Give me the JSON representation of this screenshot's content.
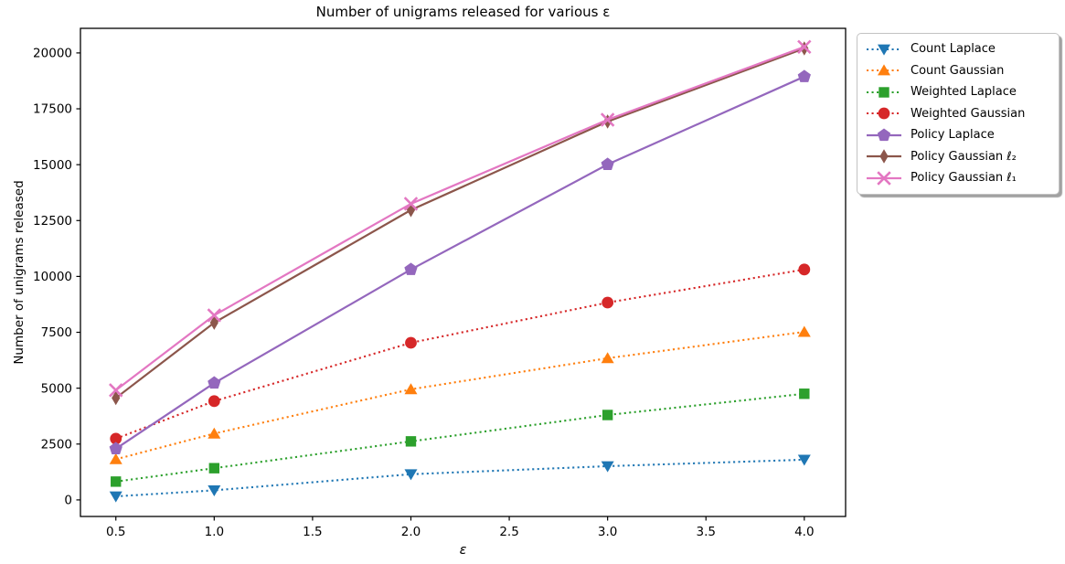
{
  "chart_data": {
    "type": "line",
    "title": "Number of unigrams released for various ε",
    "xlabel": "ε",
    "ylabel": "Number of unigrams released",
    "x": [
      0.5,
      1.0,
      2.0,
      3.0,
      4.0
    ],
    "x_ticks": [
      0.5,
      1.0,
      1.5,
      2.0,
      2.5,
      3.0,
      3.5,
      4.0
    ],
    "y_ticks": [
      0,
      2500,
      5000,
      7500,
      10000,
      12500,
      15000,
      17500,
      20000
    ],
    "xlim": [
      0.32,
      4.21
    ],
    "ylim": [
      -740,
      21100
    ],
    "grid": false,
    "legend_position": "upper right",
    "series": [
      {
        "name": "Count Laplace",
        "color": "#1f77b4",
        "marker": "triangle-down",
        "linestyle": "dotted",
        "values": [
          160,
          430,
          1150,
          1510,
          1800
        ]
      },
      {
        "name": "Count Gaussian",
        "color": "#ff7f0e",
        "marker": "triangle-up",
        "linestyle": "dotted",
        "values": [
          1820,
          2970,
          4950,
          6340,
          7520
        ]
      },
      {
        "name": "Weighted Laplace",
        "color": "#2ca02c",
        "marker": "square",
        "linestyle": "dotted",
        "values": [
          820,
          1420,
          2620,
          3800,
          4750
        ]
      },
      {
        "name": "Weighted Gaussian",
        "color": "#d62728",
        "marker": "circle",
        "linestyle": "dotted",
        "values": [
          2740,
          4420,
          7030,
          8830,
          10310
        ]
      },
      {
        "name": "Policy Laplace",
        "color": "#9467bd",
        "marker": "pentagon",
        "linestyle": "solid",
        "values": [
          2290,
          5230,
          10310,
          15010,
          18940
        ]
      },
      {
        "name": "Policy Gaussian ℓ₂",
        "color": "#8c564b",
        "marker": "thin-diamond",
        "linestyle": "solid",
        "values": [
          4560,
          7930,
          12970,
          16930,
          20200
        ]
      },
      {
        "name": "Policy Gaussian ℓ₁",
        "color": "#e377c2",
        "marker": "x",
        "linestyle": "solid",
        "values": [
          4910,
          8260,
          13250,
          17010,
          20270
        ]
      }
    ],
    "axis_color": "#000000",
    "background": "#ffffff"
  }
}
